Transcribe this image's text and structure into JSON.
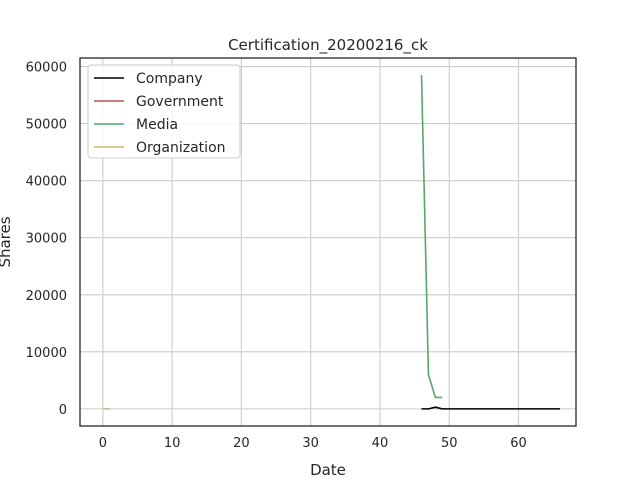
{
  "chart_data": {
    "type": "line",
    "title": "Certification_20200216_ck",
    "xlabel": "Date",
    "ylabel": "Shares",
    "xlim": [
      -3.3,
      68.3
    ],
    "ylim": [
      -3000,
      61500
    ],
    "x_ticks": [
      0,
      10,
      20,
      30,
      40,
      50,
      60
    ],
    "y_ticks": [
      0,
      10000,
      20000,
      30000,
      40000,
      50000,
      60000
    ],
    "grid": true,
    "legend": "top-left",
    "series": [
      {
        "name": "Company",
        "color": "#000000",
        "x": [
          46,
          47,
          48,
          49,
          50,
          51,
          52,
          53,
          54,
          55,
          56,
          57,
          58,
          59,
          60,
          61,
          62,
          63,
          64,
          65,
          66
        ],
        "y": [
          0,
          0,
          300,
          0,
          0,
          0,
          0,
          0,
          0,
          0,
          0,
          0,
          0,
          0,
          0,
          0,
          0,
          0,
          0,
          0,
          0
        ]
      },
      {
        "name": "Government",
        "color": "#c44e52",
        "x": [],
        "y": []
      },
      {
        "name": "Media",
        "color": "#55a868",
        "x": [
          46,
          47,
          48,
          49
        ],
        "y": [
          58500,
          6000,
          2000,
          2000
        ]
      },
      {
        "name": "Organization",
        "color": "#ccb974",
        "x": [
          0,
          1
        ],
        "y": [
          0,
          0
        ]
      }
    ]
  }
}
